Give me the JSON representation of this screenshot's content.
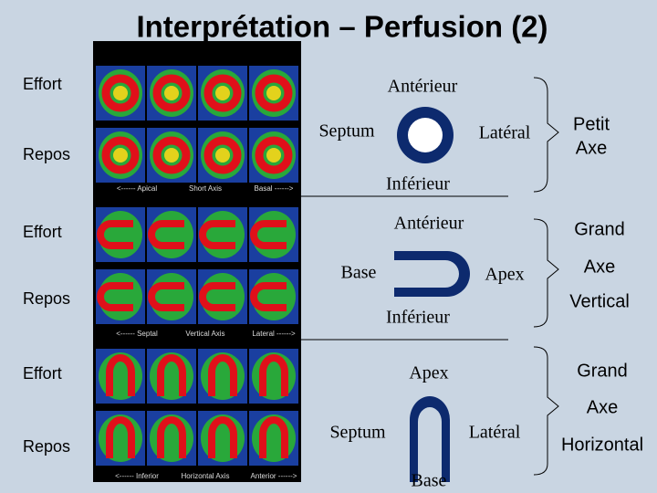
{
  "title": "Interprétation – Perfusion (2)",
  "sections": [
    {
      "rows": [
        "Effort",
        "Repos"
      ],
      "scan_captions": [
        "<------ Apical",
        "Short Axis",
        "Basal ------>"
      ],
      "orientation": {
        "top": "Antérieur",
        "left": "Septum",
        "right": "Latéral",
        "bottom": "Inférieur"
      },
      "axis_name": [
        "Petit",
        "Axe"
      ]
    },
    {
      "rows": [
        "Effort",
        "Repos"
      ],
      "scan_captions": [
        "<------ Septal",
        "Vertical Axis",
        "Lateral ------>"
      ],
      "orientation": {
        "top": "Antérieur",
        "left": "Base",
        "right": "Apex",
        "bottom": "Inférieur"
      },
      "axis_name": [
        "Grand",
        "Axe",
        "Vertical"
      ]
    },
    {
      "rows": [
        "Effort",
        "Repos"
      ],
      "scan_captions": [
        "<------ Inferior",
        "Horizontal Axis",
        "Anterior ------>"
      ],
      "orientation": {
        "top": "Apex",
        "left": "Septum",
        "right": "Latéral",
        "bottom": "Base"
      },
      "axis_name": [
        "Grand",
        "Axe",
        "Horizontal"
      ]
    }
  ]
}
